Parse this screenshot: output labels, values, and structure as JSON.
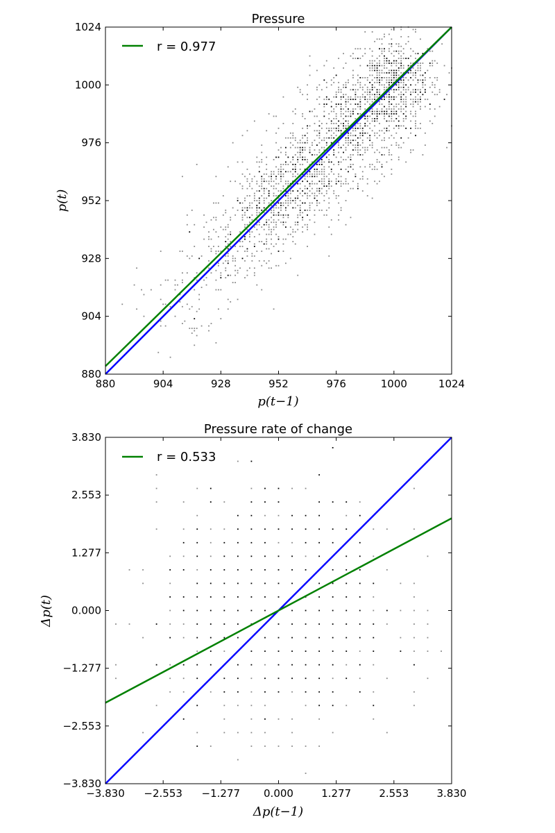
{
  "chart_data": [
    {
      "type": "scatter",
      "title": "Pressure",
      "xlabel": "p(t−1)",
      "ylabel": "p(t)",
      "xlim": [
        880,
        1024
      ],
      "ylim": [
        880,
        1024
      ],
      "xticks": [
        "880",
        "904",
        "928",
        "952",
        "976",
        "1000",
        "1024"
      ],
      "yticks": [
        "880",
        "904",
        "928",
        "952",
        "976",
        "1000",
        "1024"
      ],
      "xtick_values": [
        880,
        904,
        928,
        952,
        976,
        1000,
        1024
      ],
      "ytick_values": [
        880,
        904,
        928,
        952,
        976,
        1000,
        1024
      ],
      "legend": {
        "placement": "top-left",
        "entries": [
          {
            "label": "r = 0.977",
            "color": "#008000"
          }
        ]
      },
      "scatter": {
        "color_dense": "#000000",
        "color_sparse": "#888888",
        "clusters": [
          {
            "x": 1000,
            "y": 1000,
            "sx": 10,
            "sy": 10,
            "n": 700,
            "quant": 1
          },
          {
            "x": 983,
            "y": 983,
            "sx": 11,
            "sy": 11,
            "n": 550,
            "quant": 1
          },
          {
            "x": 963,
            "y": 963,
            "sx": 10,
            "sy": 10,
            "n": 500,
            "quant": 1
          },
          {
            "x": 948,
            "y": 948,
            "sx": 9,
            "sy": 9,
            "n": 320,
            "quant": 1
          },
          {
            "x": 930,
            "y": 930,
            "sx": 9,
            "sy": 9,
            "n": 160,
            "quant": 1
          },
          {
            "x": 910,
            "y": 910,
            "sx": 10,
            "sy": 10,
            "n": 70,
            "quant": 1
          }
        ]
      },
      "lines": [
        {
          "name": "identity",
          "color": "#0000ff",
          "points": [
            [
              880,
              880
            ],
            [
              1024,
              1024
            ]
          ]
        },
        {
          "name": "fit",
          "color": "#008000",
          "points": [
            [
              880,
              883.3
            ],
            [
              1024,
              1024
            ]
          ]
        }
      ]
    },
    {
      "type": "scatter",
      "title": "Pressure rate of change",
      "xlabel": "Δp(t−1)",
      "ylabel": "Δp(t)",
      "xlim": [
        -3.83,
        3.83
      ],
      "ylim": [
        -3.83,
        3.83
      ],
      "xticks": [
        "−3.830",
        "−2.553",
        "−1.277",
        "0.000",
        "1.277",
        "2.553",
        "3.830"
      ],
      "yticks": [
        "−3.830",
        "−2.553",
        "−1.277",
        "0.000",
        "1.277",
        "2.553",
        "3.830"
      ],
      "xtick_values": [
        -3.83,
        -2.553,
        -1.277,
        0,
        1.277,
        2.553,
        3.83
      ],
      "ytick_values": [
        -3.83,
        -2.553,
        -1.277,
        0,
        1.277,
        2.553,
        3.83
      ],
      "legend": {
        "placement": "top-left",
        "entries": [
          {
            "label": "r = 0.533",
            "color": "#008000"
          }
        ]
      },
      "scatter": {
        "color_dense": "#000000",
        "color_sparse": "#888888",
        "clusters": [
          {
            "x": 0,
            "y": 0,
            "sx": 1.3,
            "sy": 1.3,
            "n": 900,
            "quant": 0.3
          }
        ]
      },
      "lines": [
        {
          "name": "identity",
          "color": "#0000ff",
          "points": [
            [
              -3.83,
              -3.83
            ],
            [
              3.83,
              3.83
            ]
          ]
        },
        {
          "name": "fit",
          "color": "#008000",
          "points": [
            [
              -3.83,
              -2.04
            ],
            [
              3.83,
              2.04
            ]
          ]
        }
      ]
    }
  ]
}
